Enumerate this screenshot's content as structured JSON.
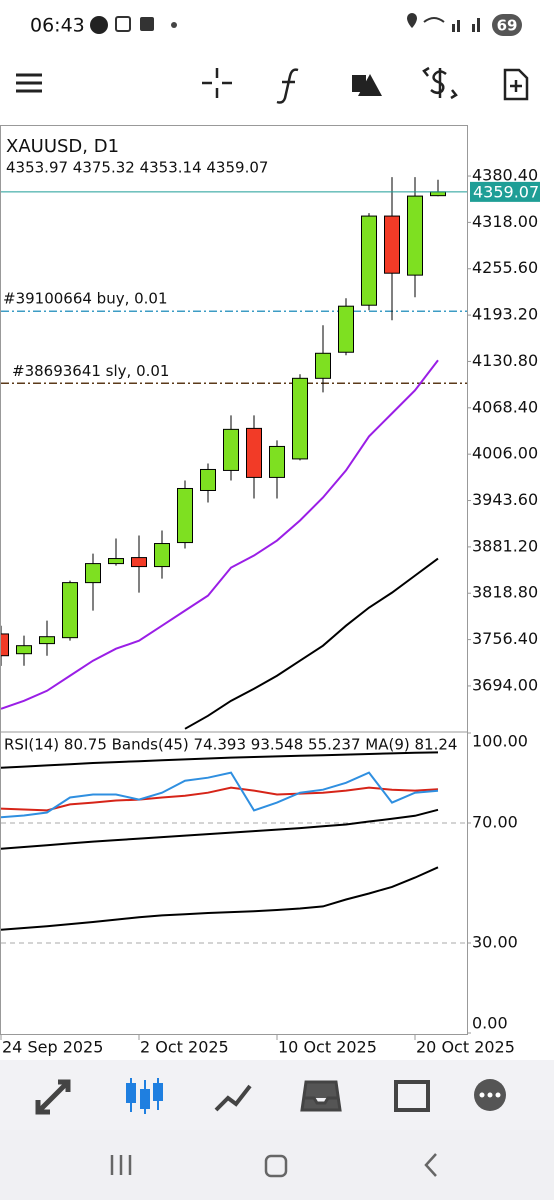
{
  "status_bar": {
    "time": "06:43",
    "battery": 69
  },
  "chart_data": [
    {
      "type": "candlestick",
      "title": "XAUUSD, D1",
      "subtitle": "4353.97 4375.32 4353.14 4359.07",
      "categories": [
        "24 Sep 2025",
        null,
        null,
        null,
        null,
        null,
        "2 Oct 2025",
        null,
        null,
        null,
        null,
        null,
        "10 Oct 2025",
        null,
        null,
        null,
        null,
        null,
        "20 Oct 2025",
        null
      ],
      "open": [
        3764.0,
        3737.4,
        3751.0,
        3759.0,
        3833.1,
        3858.7,
        3866.8,
        3854.7,
        3887.0,
        3957.1,
        3984.1,
        4040.7,
        3974.7,
        3999.6,
        4108.1,
        4143.2,
        4206.5,
        4326.5,
        4247.0,
        4353.97
      ],
      "high": [
        3775.0,
        3761.7,
        3781.9,
        3835.8,
        3872.2,
        3892.4,
        3896.5,
        3903.2,
        3970.6,
        3993.5,
        4058.2,
        4058.2,
        4024.5,
        4113.5,
        4179.5,
        4215.9,
        4330.5,
        4379.0,
        4379.0,
        4375.32
      ],
      "low": [
        3721.0,
        3721.2,
        3734.7,
        3755.0,
        3795.4,
        3856.0,
        3819.6,
        3838.5,
        3879.0,
        3941.0,
        3970.6,
        3946.3,
        3946.3,
        3997.6,
        4089.2,
        4139.1,
        4199.8,
        4186.3,
        4217.3,
        4353.14
      ],
      "close": [
        3734.7,
        3748.2,
        3760.3,
        3833.1,
        3858.7,
        3865.5,
        3854.7,
        3885.7,
        3959.8,
        3985.4,
        4039.4,
        3974.7,
        4016.4,
        4108.1,
        4141.8,
        4205.2,
        4326.5,
        4249.6,
        4353.4,
        4359.07
      ],
      "up_color": "#7ee021",
      "down_color": "#f23b27",
      "series": [
        {
          "color": "#9a1ee6",
          "values": [
            3663.3,
            3674.0,
            3687.5,
            3707.7,
            3728.0,
            3744.1,
            3754.9,
            3775.1,
            3795.4,
            3815.6,
            3853.3,
            3869.5,
            3889.7,
            3916.7,
            3947.7,
            3984.1,
            4029.9,
            4060.9,
            4091.9,
            4132.4
          ]
        },
        {
          "color": "#000000",
          "values": [
            null,
            null,
            null,
            null,
            null,
            null,
            null,
            null,
            3636.3,
            3653.8,
            3674.0,
            3690.2,
            3707.7,
            3728.0,
            3748.2,
            3775.1,
            3799.4,
            3819.6,
            3842.5,
            3865.5
          ]
        }
      ],
      "orders": [
        {
          "label": "#39100664 buy, 0.01",
          "value": 4198.4,
          "color": "#3d9cc4"
        },
        {
          "label": "#38693641 sly, 0.01",
          "value": 4101.4,
          "color": "#5b3a1a"
        }
      ],
      "last_price": {
        "value": 4359.07,
        "label": "4359.07",
        "color": "#1e9e96"
      },
      "ylim": [
        3634.7,
        4446.4
      ],
      "yticks": [
        {
          "value": 4380.4,
          "label": "4380.40"
        },
        {
          "value": 4318,
          "label": "4318.00"
        },
        {
          "value": 4255.6,
          "label": "4255.60"
        },
        {
          "value": 4193.2,
          "label": "4193.20"
        },
        {
          "value": 4130.8,
          "label": "4130.80"
        },
        {
          "value": 4068.4,
          "label": "4068.40"
        },
        {
          "value": 4006,
          "label": "4006.00"
        },
        {
          "value": 3943.6,
          "label": "3943.60"
        },
        {
          "value": 3881.2,
          "label": "3881.20"
        },
        {
          "value": 3818.8,
          "label": "3818.80"
        },
        {
          "value": 3756.4,
          "label": "3756.40"
        },
        {
          "value": 3694,
          "label": "3694.00"
        }
      ]
    },
    {
      "type": "line",
      "title": "RSI(14) 80.75 Bands(45) 74.393 93.548 55.237 MA(9) 81.24",
      "series": [
        {
          "color": "#000000",
          "values": [
            88.4,
            88.8,
            89.2,
            89.6,
            90.0,
            90.3,
            90.6,
            90.9,
            91.2,
            91.5,
            91.8,
            92.0,
            92.2,
            92.4,
            92.6,
            92.8,
            93.0,
            93.2,
            93.4,
            93.548
          ]
        },
        {
          "color": "#000000",
          "values": [
            61.4,
            62.0,
            62.6,
            63.2,
            63.8,
            64.3,
            64.8,
            65.3,
            65.8,
            66.3,
            66.8,
            67.3,
            67.8,
            68.3,
            68.9,
            69.5,
            70.5,
            71.4,
            72.4,
            74.393
          ]
        },
        {
          "color": "#000000",
          "values": [
            34.4,
            35.0,
            35.6,
            36.3,
            37.0,
            37.8,
            38.6,
            39.2,
            39.6,
            40.0,
            40.3,
            40.6,
            41.0,
            41.5,
            42.2,
            44.5,
            46.5,
            48.7,
            51.8,
            55.237
          ]
        },
        {
          "color": "#d62418",
          "values": [
            74.8,
            74.5,
            74.2,
            76.2,
            76.8,
            77.5,
            77.8,
            78.5,
            79.1,
            80.1,
            81.8,
            80.8,
            79.5,
            79.8,
            80.1,
            80.8,
            81.8,
            81.1,
            80.8,
            81.24
          ]
        },
        {
          "color": "#2f8fe0",
          "values": [
            71.9,
            72.5,
            73.5,
            78.5,
            79.5,
            79.5,
            77.8,
            80.1,
            84.1,
            85.1,
            86.8,
            74.2,
            76.8,
            80.1,
            81.1,
            83.4,
            86.8,
            76.8,
            80.1,
            80.75
          ]
        }
      ],
      "ylim": [
        0,
        100
      ],
      "yticks": [
        {
          "value": 100,
          "label": "100.00"
        },
        {
          "value": 70,
          "label": "70.00"
        },
        {
          "value": 30,
          "label": "30.00"
        },
        {
          "value": 0,
          "label": "0.00"
        }
      ]
    }
  ]
}
